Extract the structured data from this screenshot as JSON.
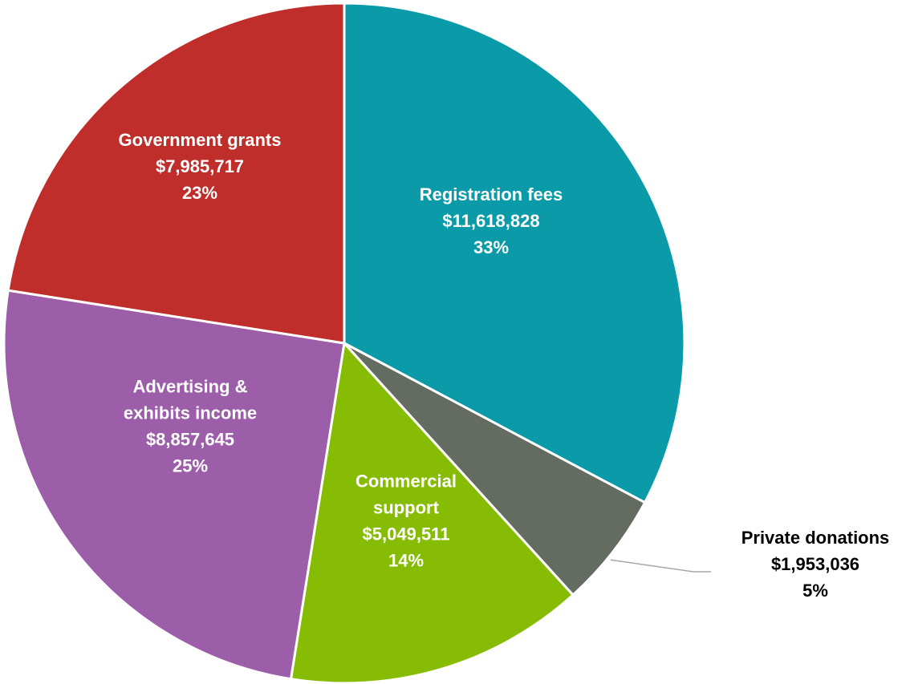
{
  "chart_data": {
    "type": "pie",
    "title": "",
    "slices": [
      {
        "label": [
          "Registration fees"
        ],
        "value": 11618828,
        "value_label": "$11,618,828",
        "percent_label": "33%",
        "color": "#0A9AA8",
        "label_color": "#ffffff"
      },
      {
        "label": [
          "Private donations"
        ],
        "value": 1953036,
        "value_label": "$1,953,036",
        "percent_label": "5%",
        "color": "#646B61",
        "label_color": "#000000",
        "external_label": true
      },
      {
        "label": [
          "Commercial",
          "support"
        ],
        "value": 5049511,
        "value_label": "$5,049,511",
        "percent_label": "14%",
        "color": "#86BC04",
        "label_color": "#ffffff"
      },
      {
        "label": [
          "Advertising &",
          "exhibits income"
        ],
        "value": 8857645,
        "value_label": "$8,857,645",
        "percent_label": "25%",
        "color": "#9C5EA8",
        "label_color": "#ffffff"
      },
      {
        "label": [
          "Government grants"
        ],
        "value": 7985717,
        "value_label": "$7,985,717",
        "percent_label": "23%",
        "color": "#BF2E2A",
        "label_color": "#ffffff"
      }
    ]
  }
}
